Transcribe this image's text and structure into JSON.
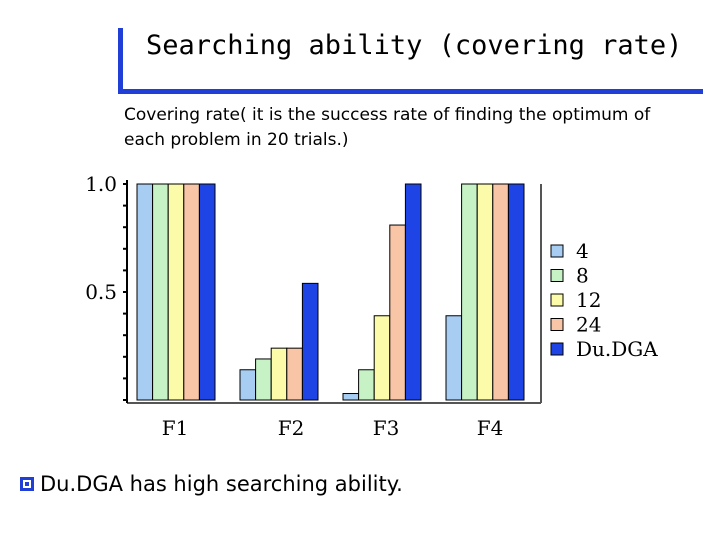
{
  "slide": {
    "title": "Searching ability (covering rate)",
    "subtitle": "Covering rate( it is the success rate of finding the optimum of each problem in 20 trials.)",
    "bullet": "Du.DGA has high searching ability."
  },
  "chart_data": {
    "type": "bar",
    "categories": [
      "F1",
      "F2",
      "F3",
      "F4"
    ],
    "ylim": [
      0,
      1.0
    ],
    "yticks": [
      {
        "value": 1.0,
        "label": "1.0"
      },
      {
        "value": 0.5,
        "label": "0.5"
      }
    ],
    "minor_tick_step": 0.1,
    "grid": false,
    "legend_position": "right",
    "series": [
      {
        "name": "4",
        "color": "#a8cdf2",
        "values": [
          1.0,
          0.14,
          0.03,
          0.39
        ]
      },
      {
        "name": "8",
        "color": "#c6f2c6",
        "values": [
          1.0,
          0.19,
          0.14,
          1.0
        ]
      },
      {
        "name": "12",
        "color": "#fbfba9",
        "values": [
          1.0,
          0.24,
          0.39,
          1.0
        ]
      },
      {
        "name": "24",
        "color": "#f8c6a6",
        "values": [
          1.0,
          0.24,
          0.81,
          1.0
        ]
      },
      {
        "name": "Du.DGA",
        "color": "#1f44e6",
        "values": [
          1.0,
          0.54,
          1.0,
          1.0
        ]
      }
    ]
  }
}
